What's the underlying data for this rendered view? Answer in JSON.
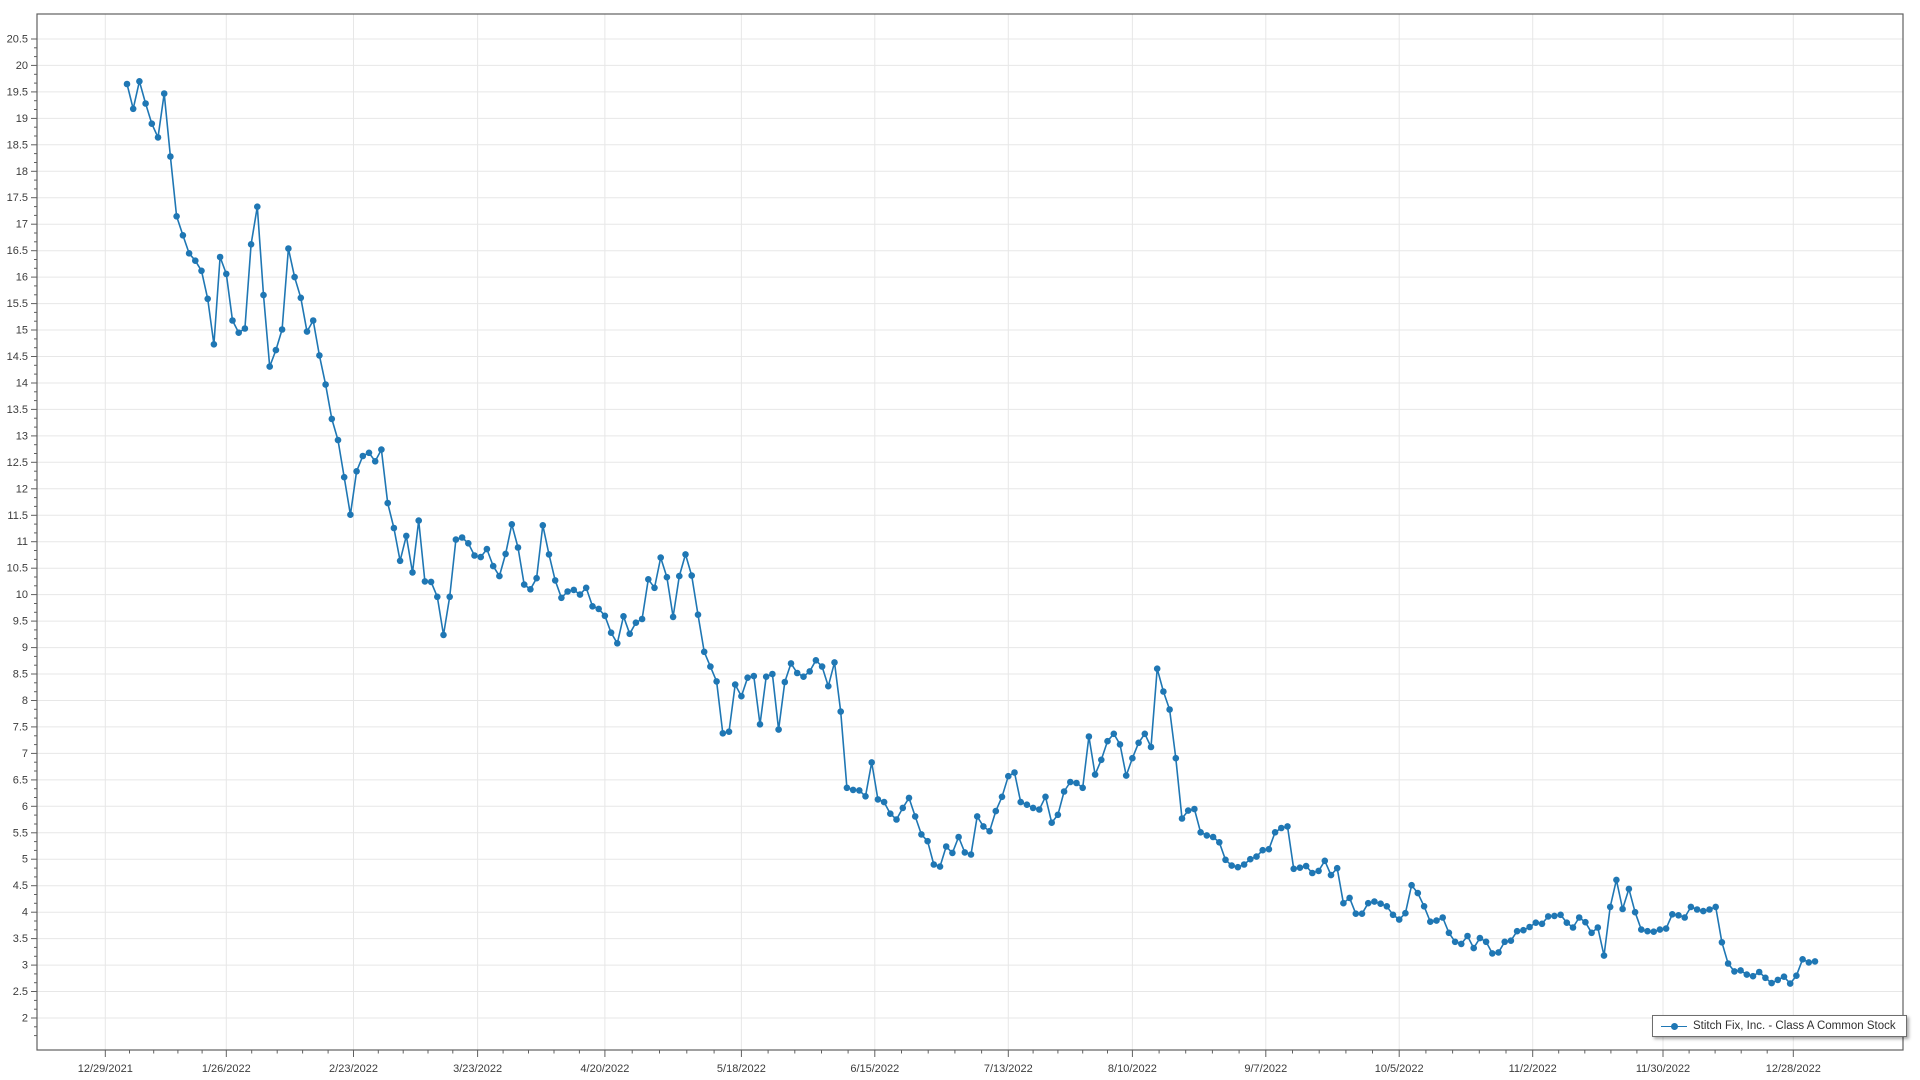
{
  "chart_data": {
    "type": "line",
    "legend": "Stitch Fix, Inc. - Class A Common Stock",
    "series_color": "#1f77b4",
    "grid": true,
    "legend_position": "bottom-right",
    "x_tick_labels": [
      "12/29/2021",
      "1/26/2022",
      "2/23/2022",
      "3/23/2022",
      "4/20/2022",
      "5/18/2022",
      "6/15/2022",
      "7/13/2022",
      "8/10/2022",
      "9/7/2022",
      "10/5/2022",
      "11/2/2022",
      "11/30/2022",
      "12/28/2022"
    ],
    "x_tick_point_indices": [
      -3.5,
      16,
      36.5,
      56.5,
      77,
      99,
      120.5,
      142,
      162,
      183.5,
      205,
      226.5,
      247.5,
      268.5
    ],
    "y_tick_labels": [
      "20.5",
      "20",
      "19.5",
      "19",
      "18.5",
      "18",
      "17.5",
      "17",
      "16.5",
      "16",
      "15.5",
      "15",
      "14.5",
      "14",
      "13.5",
      "13",
      "12.5",
      "12",
      "11.5",
      "11",
      "10.5",
      "10",
      "9.5",
      "9",
      "8.5",
      "8",
      "7.5",
      "7",
      "6.5",
      "6",
      "5.5",
      "5",
      "4.5",
      "4",
      "3.5",
      "3",
      "2.5",
      "2"
    ],
    "y_tick_min": 2,
    "y_tick_max": 20.5,
    "y_tick_step": 0.5,
    "ylim": [
      1.4,
      20.97
    ],
    "values": [
      19.65,
      19.18,
      19.7,
      19.28,
      18.9,
      18.64,
      19.47,
      18.28,
      17.15,
      16.79,
      16.45,
      16.31,
      16.12,
      15.59,
      14.73,
      16.38,
      16.06,
      15.18,
      14.95,
      15.03,
      16.62,
      17.33,
      15.66,
      14.31,
      14.62,
      15.01,
      16.54,
      16.0,
      15.61,
      14.97,
      15.18,
      14.52,
      13.97,
      13.32,
      12.92,
      12.22,
      11.51,
      12.33,
      12.62,
      12.68,
      12.52,
      12.74,
      11.73,
      11.26,
      10.64,
      11.11,
      10.42,
      11.4,
      10.25,
      10.24,
      9.96,
      9.24,
      9.96,
      11.04,
      11.08,
      10.97,
      10.74,
      10.71,
      10.86,
      10.54,
      10.35,
      10.77,
      11.33,
      10.89,
      10.19,
      10.1,
      10.31,
      11.31,
      10.76,
      10.27,
      9.94,
      10.06,
      10.09,
      10.0,
      10.13,
      9.78,
      9.73,
      9.6,
      9.28,
      9.08,
      9.59,
      9.26,
      9.47,
      9.54,
      10.29,
      10.13,
      10.7,
      10.33,
      9.58,
      10.35,
      10.76,
      10.36,
      9.62,
      8.92,
      8.64,
      8.36,
      7.38,
      7.41,
      8.3,
      8.08,
      8.43,
      8.46,
      7.55,
      8.45,
      8.5,
      7.45,
      8.35,
      8.7,
      8.52,
      8.45,
      8.55,
      8.76,
      8.64,
      8.27,
      8.72,
      7.79,
      6.35,
      6.31,
      6.3,
      6.19,
      6.83,
      6.13,
      6.08,
      5.86,
      5.75,
      5.97,
      6.16,
      5.81,
      5.47,
      5.34,
      4.9,
      4.86,
      5.24,
      5.12,
      5.42,
      5.13,
      5.09,
      5.81,
      5.62,
      5.53,
      5.91,
      6.18,
      6.57,
      6.64,
      6.08,
      6.03,
      5.97,
      5.94,
      6.18,
      5.69,
      5.84,
      6.28,
      6.46,
      6.44,
      6.35,
      7.32,
      6.6,
      6.88,
      7.23,
      7.37,
      7.17,
      6.58,
      6.91,
      7.2,
      7.37,
      7.12,
      8.6,
      8.17,
      7.83,
      6.91,
      5.77,
      5.92,
      5.95,
      5.51,
      5.45,
      5.42,
      5.32,
      4.99,
      4.88,
      4.85,
      4.9,
      5.0,
      5.05,
      5.17,
      5.19,
      5.51,
      5.59,
      5.62,
      4.82,
      4.84,
      4.87,
      4.74,
      4.78,
      4.97,
      4.7,
      4.83,
      4.17,
      4.27,
      3.97,
      3.97,
      4.17,
      4.2,
      4.16,
      4.11,
      3.95,
      3.86,
      3.98,
      4.51,
      4.36,
      4.11,
      3.82,
      3.84,
      3.9,
      3.61,
      3.44,
      3.4,
      3.55,
      3.32,
      3.51,
      3.44,
      3.22,
      3.24,
      3.44,
      3.46,
      3.64,
      3.66,
      3.72,
      3.8,
      3.78,
      3.92,
      3.93,
      3.95,
      3.8,
      3.71,
      3.9,
      3.81,
      3.61,
      3.71,
      3.18,
      4.1,
      4.61,
      4.06,
      4.44,
      4.0,
      3.67,
      3.64,
      3.63,
      3.67,
      3.69,
      3.96,
      3.94,
      3.9,
      4.1,
      4.05,
      4.02,
      4.05,
      4.1,
      3.43,
      3.03,
      2.88,
      2.9,
      2.82,
      2.79,
      2.87,
      2.76,
      2.66,
      2.72,
      2.78,
      2.65,
      2.8,
      3.11,
      3.05,
      3.07
    ],
    "colors": {
      "gridline": "#e7e7e7",
      "frame": "#606060",
      "tick": "#606060",
      "tick_label": "#3c3c3c",
      "background": "#ffffff"
    }
  }
}
